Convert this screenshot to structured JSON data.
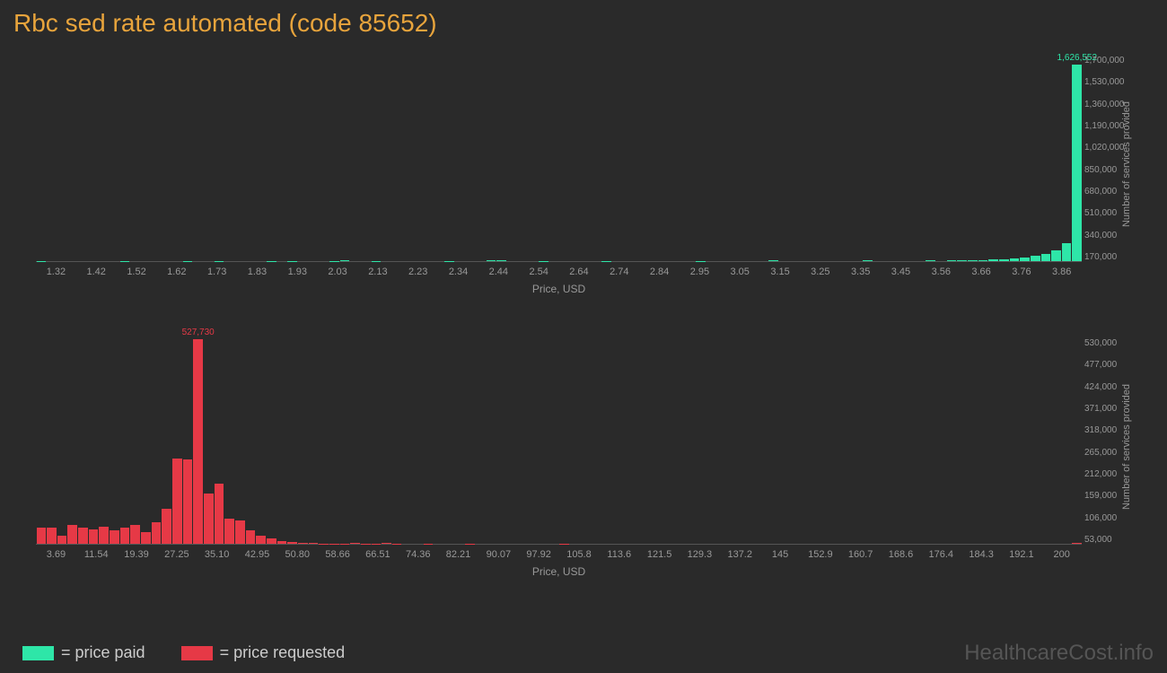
{
  "title": "Rbc sed rate automated (code 85652)",
  "watermark": "HealthcareCost.info",
  "colors": {
    "background": "#2a2a2a",
    "title": "#e8a43c",
    "paid": "#2ee6a8",
    "requested": "#e63946",
    "axis_text": "#999999",
    "grid": "#555555"
  },
  "legend": {
    "paid": "= price paid",
    "requested": "= price requested"
  },
  "chart1": {
    "type": "histogram",
    "color": "#2ee6a8",
    "x_label": "Price, USD",
    "y_label": "Number of services provided",
    "x_ticks": [
      "1.32",
      "1.42",
      "1.52",
      "1.62",
      "1.73",
      "1.83",
      "1.93",
      "2.03",
      "2.13",
      "2.23",
      "2.34",
      "2.44",
      "2.54",
      "2.64",
      "2.74",
      "2.84",
      "2.95",
      "3.05",
      "3.15",
      "3.25",
      "3.35",
      "3.45",
      "3.56",
      "3.66",
      "3.76",
      "3.86"
    ],
    "y_ticks": [
      "170,000",
      "340,000",
      "510,000",
      "680,000",
      "850,000",
      "1,020,000",
      "1,190,000",
      "1,360,000",
      "1,530,000",
      "1,700,000"
    ],
    "ymax": 1700000,
    "peak_label": "1,626,552",
    "values": [
      2000,
      0,
      0,
      0,
      0,
      0,
      0,
      0,
      3000,
      0,
      0,
      0,
      0,
      0,
      3000,
      0,
      0,
      2000,
      0,
      0,
      0,
      0,
      3000,
      0,
      3000,
      0,
      0,
      0,
      2000,
      4000,
      0,
      0,
      3000,
      0,
      0,
      0,
      0,
      0,
      0,
      2500,
      0,
      0,
      0,
      4000,
      5000,
      0,
      0,
      0,
      3000,
      0,
      0,
      0,
      0,
      0,
      3500,
      0,
      0,
      0,
      0,
      0,
      0,
      0,
      0,
      3000,
      0,
      0,
      0,
      0,
      0,
      0,
      4500,
      0,
      0,
      0,
      0,
      0,
      0,
      0,
      0,
      5000,
      0,
      0,
      0,
      0,
      0,
      5000,
      0,
      6000,
      5000,
      8000,
      10000,
      12000,
      18000,
      22000,
      30000,
      45000,
      60000,
      90000,
      150000,
      1626552
    ]
  },
  "chart2": {
    "type": "histogram",
    "color": "#e63946",
    "x_label": "Price, USD",
    "y_label": "Number of services provided",
    "x_ticks": [
      "3.69",
      "11.54",
      "19.39",
      "27.25",
      "35.10",
      "42.95",
      "50.80",
      "58.66",
      "66.51",
      "74.36",
      "82.21",
      "90.07",
      "97.92",
      "105.8",
      "113.6",
      "121.5",
      "129.3",
      "137.2",
      "145",
      "152.9",
      "160.7",
      "168.6",
      "176.4",
      "184.3",
      "192.1",
      "200"
    ],
    "y_ticks": [
      "53,000",
      "106,000",
      "159,000",
      "212,000",
      "265,000",
      "318,000",
      "371,000",
      "424,000",
      "477,000",
      "530,000"
    ],
    "ymax": 530000,
    "peak_label": "527,730",
    "values": [
      42000,
      42000,
      20000,
      48000,
      42000,
      38000,
      45000,
      35000,
      42000,
      48000,
      30000,
      55000,
      90000,
      220000,
      218000,
      527730,
      130000,
      155000,
      65000,
      60000,
      35000,
      20000,
      15000,
      8000,
      5000,
      3000,
      2000,
      1000,
      500,
      500,
      3000,
      1000,
      500,
      3000,
      500,
      0,
      0,
      500,
      0,
      0,
      0,
      500,
      0,
      0,
      0,
      0,
      0,
      0,
      0,
      0,
      500,
      0,
      0,
      0,
      0,
      0,
      0,
      0,
      0,
      0,
      0,
      0,
      0,
      0,
      0,
      0,
      0,
      0,
      0,
      0,
      0,
      0,
      0,
      0,
      0,
      0,
      0,
      0,
      0,
      0,
      0,
      0,
      0,
      0,
      0,
      0,
      0,
      0,
      0,
      0,
      0,
      0,
      0,
      0,
      0,
      0,
      0,
      0,
      0,
      2000
    ]
  }
}
